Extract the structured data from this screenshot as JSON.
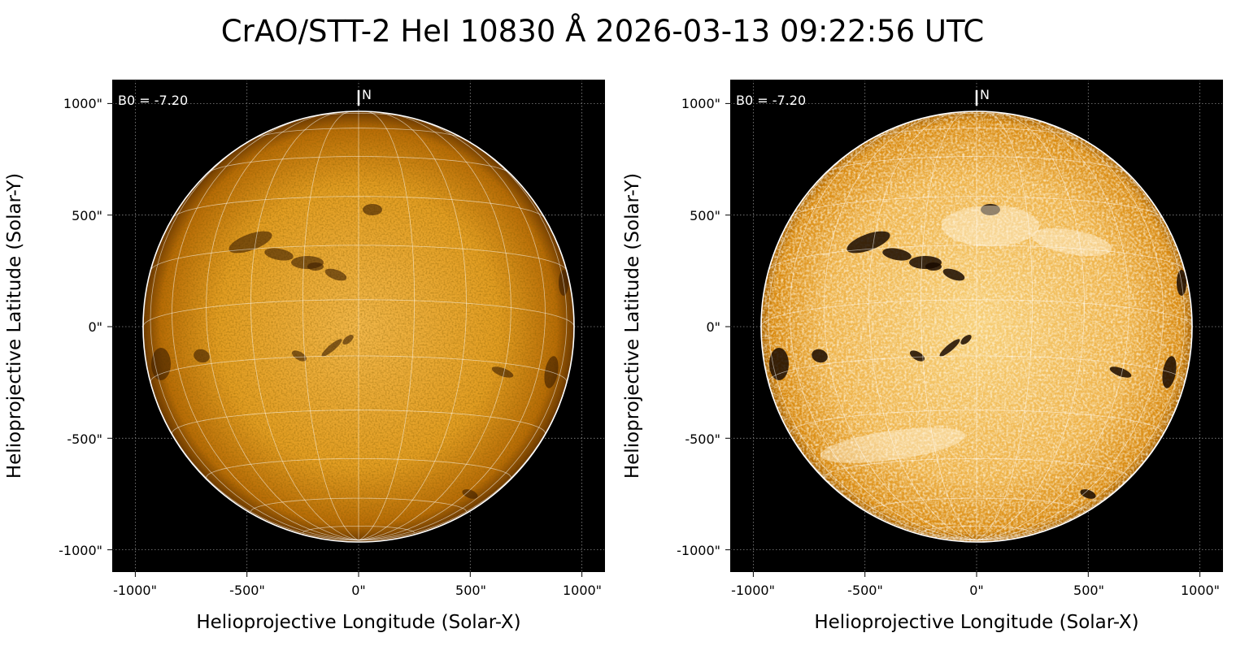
{
  "title": "CrAO/STT-2 HeI 10830 Å 2026-03-13 09:22:56 UTC",
  "colors": {
    "background": "#000000",
    "disk": "#e09a1c",
    "grid": "#ffffff",
    "limb": "#ffffff"
  },
  "panels": [
    {
      "id": "left",
      "xlabel": "Helioprojective Longitude (Solar-X)",
      "ylabel": "Helioprojective Latitude (Solar-Y)",
      "b0_text": "B0 = -7.20",
      "north_label": "N",
      "xticks": [
        "-1000\"",
        "-500\"",
        "0\"",
        "500\"",
        "1000\""
      ],
      "yticks": [
        "1000\"",
        "500\"",
        "0\"",
        "-500\"",
        "-1000\""
      ],
      "contrast": "normal"
    },
    {
      "id": "right",
      "xlabel": "Helioprojective Longitude (Solar-X)",
      "ylabel": "Helioprojective Latitude (Solar-Y)",
      "b0_text": "B0 = -7.20",
      "north_label": "N",
      "xticks": [
        "-1000\"",
        "-500\"",
        "0\"",
        "500\"",
        "1000\""
      ],
      "yticks": [
        "1000\"",
        "500\"",
        "0\"",
        "-500\"",
        "-1000\""
      ],
      "contrast": "enhanced"
    }
  ]
}
